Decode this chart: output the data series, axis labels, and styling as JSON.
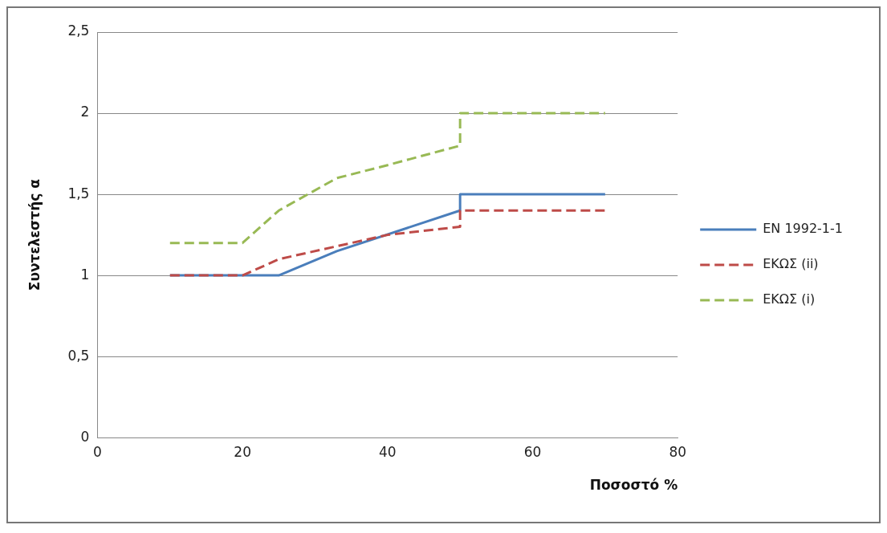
{
  "chart_data": {
    "type": "line",
    "xlabel": "Ποσοστό %",
    "ylabel": "Συντελεστής α",
    "xlim": [
      0,
      80
    ],
    "xticks": [
      0,
      20,
      40,
      60,
      80
    ],
    "ylim": [
      0,
      2.5
    ],
    "yticks": [
      0,
      {
        "value": 0.5,
        "label": "0,5"
      },
      1,
      {
        "value": 1.5,
        "label": "1,5"
      },
      2,
      {
        "value": 2.5,
        "label": "2,5"
      }
    ],
    "grid": "y",
    "legend": "right",
    "marker": "none",
    "series": [
      {
        "name": "EN 1992-1-1",
        "color": "#4a7ebb",
        "line_style": "solid",
        "x": [
          10,
          25,
          33,
          50,
          50,
          70
        ],
        "values": [
          1,
          1,
          1.15,
          1.4,
          1.5,
          1.5
        ]
      },
      {
        "name": "ΕΚΩΣ (ii)",
        "color": "#be4b48",
        "line_style": "dashed",
        "x": [
          10,
          20,
          25,
          40,
          50,
          50,
          70
        ],
        "values": [
          1,
          1,
          1.1,
          1.25,
          1.3,
          1.4,
          1.4
        ]
      },
      {
        "name": "ΕΚΩΣ (i)",
        "color": "#98b954",
        "line_style": "dashed",
        "x": [
          10,
          20,
          25,
          33,
          40,
          50,
          50,
          70
        ],
        "values": [
          1.2,
          1.2,
          1.4,
          1.6,
          1.68,
          1.8,
          2,
          2
        ]
      }
    ]
  }
}
